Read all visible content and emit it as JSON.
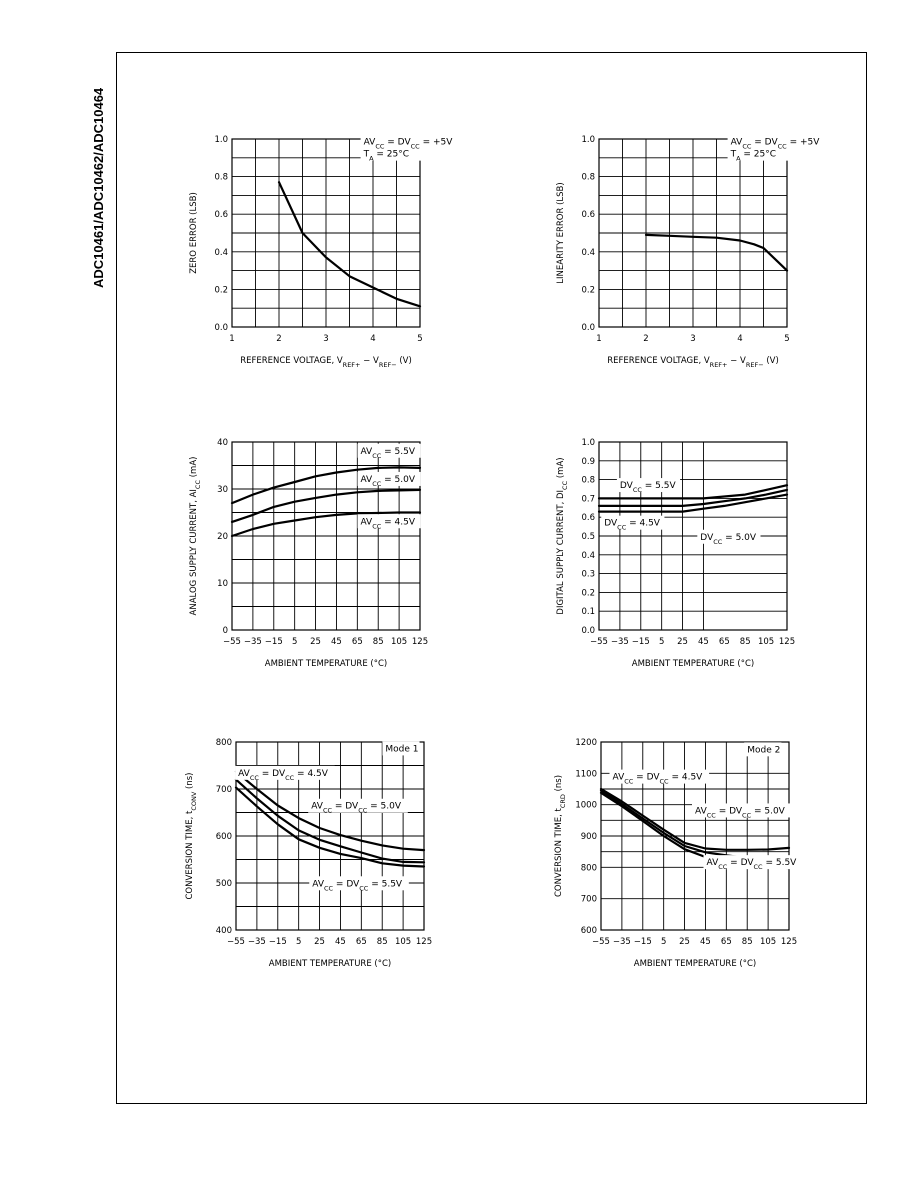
{
  "document": {
    "side_title": "ADC10461/ADC10462/ADC10464"
  },
  "chart_data": [
    {
      "type": "line",
      "ylabel": "ZERO ERROR (LSB)",
      "xlabel": "REFERENCE VOLTAGE, V_REF+ − V_REF− (V)",
      "xlim": [
        1,
        5
      ],
      "ylim": [
        0,
        1.0
      ],
      "x_ticks": [
        "1",
        "2",
        "3",
        "4",
        "5"
      ],
      "y_ticks": [
        "0.0",
        "0.2",
        "0.4",
        "0.6",
        "0.8",
        "1.0"
      ],
      "x_grid": [
        1.5,
        2,
        2.5,
        3,
        3.5,
        4,
        4.5
      ],
      "y_grid": [
        0.1,
        0.2,
        0.3,
        0.4,
        0.5,
        0.6,
        0.7,
        0.8,
        0.9
      ],
      "annotations": [
        {
          "lines": [
            "AV_CC = DV_CC = +5V",
            "T_A = 25°C"
          ],
          "x": 3.8,
          "y": 0.97
        }
      ],
      "series": [
        {
          "points": [
            [
              2,
              0.77
            ],
            [
              2.5,
              0.5
            ],
            [
              3,
              0.37
            ],
            [
              3.5,
              0.27
            ],
            [
              4,
              0.21
            ],
            [
              4.5,
              0.15
            ],
            [
              5,
              0.11
            ]
          ]
        }
      ]
    },
    {
      "type": "line",
      "ylabel": "LINEARITY ERROR (LSB)",
      "xlabel": "REFERENCE VOLTAGE, V_REF+ − V_REF− (V)",
      "xlim": [
        1,
        5
      ],
      "ylim": [
        0,
        1.0
      ],
      "x_ticks": [
        "1",
        "2",
        "3",
        "4",
        "5"
      ],
      "y_ticks": [
        "0.0",
        "0.2",
        "0.4",
        "0.6",
        "0.8",
        "1.0"
      ],
      "x_grid": [
        1.5,
        2,
        2.5,
        3,
        3.5,
        4,
        4.5
      ],
      "y_grid": [
        0.1,
        0.2,
        0.3,
        0.4,
        0.5,
        0.6,
        0.7,
        0.8,
        0.9
      ],
      "annotations": [
        {
          "lines": [
            "AV_CC = DV_CC = +5V",
            "T_A = 25°C"
          ],
          "x": 3.8,
          "y": 0.97
        }
      ],
      "series": [
        {
          "points": [
            [
              2,
              0.49
            ],
            [
              2.5,
              0.485
            ],
            [
              3,
              0.48
            ],
            [
              3.5,
              0.475
            ],
            [
              4,
              0.46
            ],
            [
              4.3,
              0.44
            ],
            [
              4.5,
              0.42
            ],
            [
              4.75,
              0.36
            ],
            [
              5,
              0.3
            ]
          ]
        }
      ]
    },
    {
      "type": "line",
      "ylabel": "ANALOG SUPPLY CURRENT, AI_CC (mA)",
      "xlabel": "AMBIENT TEMPERATURE (°C)",
      "xlim": [
        -55,
        125
      ],
      "ylim": [
        0,
        40
      ],
      "x_ticks": [
        "−55",
        "−35",
        "−15",
        "5",
        "25",
        "45",
        "65",
        "85",
        "105",
        "125"
      ],
      "y_ticks": [
        "0",
        "10",
        "20",
        "30",
        "40"
      ],
      "x_grid": [
        -35,
        -15,
        5,
        25,
        45,
        65,
        85,
        105
      ],
      "y_grid": [
        5,
        10,
        15,
        20,
        25,
        30,
        35
      ],
      "annotations": [
        {
          "lines": [
            "AV_CC = 5.5V"
          ],
          "x": 68,
          "y": 37.5
        },
        {
          "lines": [
            "AV_CC = 5.0V"
          ],
          "x": 68,
          "y": 31.5
        },
        {
          "lines": [
            "AV_CC = 4.5V"
          ],
          "x": 68,
          "y": 22.5
        }
      ],
      "series": [
        {
          "name": "AV_CC = 5.5V",
          "points": [
            [
              -55,
              27
            ],
            [
              -35,
              28.8
            ],
            [
              -15,
              30.3
            ],
            [
              5,
              31.5
            ],
            [
              25,
              32.7
            ],
            [
              45,
              33.5
            ],
            [
              65,
              34.1
            ],
            [
              85,
              34.5
            ],
            [
              105,
              34.6
            ],
            [
              125,
              34.5
            ]
          ]
        },
        {
          "name": "AV_CC = 5.0V",
          "points": [
            [
              -55,
              23
            ],
            [
              -35,
              24.5
            ],
            [
              -15,
              26.2
            ],
            [
              5,
              27.3
            ],
            [
              25,
              28.1
            ],
            [
              45,
              28.8
            ],
            [
              65,
              29.3
            ],
            [
              85,
              29.6
            ],
            [
              105,
              29.7
            ],
            [
              125,
              29.8
            ]
          ]
        },
        {
          "name": "AV_CC = 4.5V",
          "points": [
            [
              -55,
              20
            ],
            [
              -35,
              21.5
            ],
            [
              -15,
              22.6
            ],
            [
              5,
              23.3
            ],
            [
              25,
              24
            ],
            [
              45,
              24.5
            ],
            [
              65,
              24.8
            ],
            [
              85,
              24.9
            ],
            [
              105,
              25
            ],
            [
              125,
              25
            ]
          ]
        }
      ]
    },
    {
      "type": "line",
      "ylabel": "DIGITAL SUPPLY CURRENT, DI_CC (mA)",
      "xlabel": "AMBIENT TEMPERATURE (°C)",
      "xlim": [
        -55,
        125
      ],
      "ylim": [
        0,
        1.0
      ],
      "x_ticks": [
        "−55",
        "−35",
        "−15",
        "5",
        "25",
        "45",
        "65",
        "85",
        "105",
        "125"
      ],
      "y_ticks": [
        "0.0",
        "0.1",
        "0.2",
        "0.3",
        "0.4",
        "0.5",
        "0.6",
        "0.7",
        "0.8",
        "0.9",
        "1.0"
      ],
      "x_grid": [
        -35,
        -15,
        5,
        25,
        45
      ],
      "y_grid": [
        0.1,
        0.2,
        0.3,
        0.4,
        0.5,
        0.6,
        0.7,
        0.8,
        0.9
      ],
      "annotations": [
        {
          "lines": [
            "DV_CC = 5.5V"
          ],
          "x": -35,
          "y": 0.755
        },
        {
          "lines": [
            "DV_CC = 4.5V"
          ],
          "x": -50,
          "y": 0.555
        },
        {
          "lines": [
            "DV_CC = 5.0V"
          ],
          "x": 42,
          "y": 0.48
        }
      ],
      "series": [
        {
          "name": "DV_CC = 5.5V",
          "points": [
            [
              -55,
              0.7
            ],
            [
              -35,
              0.7
            ],
            [
              5,
              0.7
            ],
            [
              25,
              0.7
            ],
            [
              45,
              0.7
            ],
            [
              65,
              0.71
            ],
            [
              85,
              0.72
            ],
            [
              105,
              0.745
            ],
            [
              125,
              0.77
            ]
          ]
        },
        {
          "name": "DV_CC = 5.0V",
          "points": [
            [
              -55,
              0.66
            ],
            [
              -35,
              0.66
            ],
            [
              5,
              0.66
            ],
            [
              25,
              0.66
            ],
            [
              45,
              0.67
            ],
            [
              65,
              0.685
            ],
            [
              85,
              0.7
            ],
            [
              105,
              0.72
            ],
            [
              125,
              0.745
            ]
          ]
        },
        {
          "name": "DV_CC = 4.5V",
          "points": [
            [
              -55,
              0.63
            ],
            [
              -35,
              0.63
            ],
            [
              5,
              0.63
            ],
            [
              25,
              0.63
            ],
            [
              45,
              0.645
            ],
            [
              65,
              0.66
            ],
            [
              85,
              0.68
            ],
            [
              105,
              0.7
            ],
            [
              125,
              0.72
            ]
          ]
        }
      ]
    },
    {
      "type": "line",
      "ylabel": "CONVERSION TIME, t_CONV (ns)",
      "xlabel": "AMBIENT TEMPERATURE (°C)",
      "xlim": [
        -55,
        125
      ],
      "ylim": [
        400,
        800
      ],
      "x_ticks": [
        "−55",
        "−35",
        "−15",
        "5",
        "25",
        "45",
        "65",
        "85",
        "105",
        "125"
      ],
      "y_ticks": [
        "400",
        "500",
        "600",
        "700",
        "800"
      ],
      "x_grid": [
        -35,
        -15,
        5,
        25,
        45,
        65,
        85,
        105
      ],
      "y_grid": [
        450,
        500,
        550,
        600,
        650,
        700,
        750
      ],
      "annotations": [
        {
          "lines": [
            "Mode 1"
          ],
          "x": 88,
          "y": 780
        },
        {
          "lines": [
            "AV_CC = DV_CC = 4.5V"
          ],
          "x": -53,
          "y": 728
        },
        {
          "lines": [
            "AV_CC = DV_CC = 5.0V"
          ],
          "x": 17,
          "y": 658
        },
        {
          "lines": [
            "AV_CC = DV_CC = 5.5V"
          ],
          "x": 18,
          "y": 493
        }
      ],
      "series": [
        {
          "name": "AV_CC = DV_CC = 4.5V",
          "points": [
            [
              -55,
              737
            ],
            [
              -35,
              700
            ],
            [
              -15,
              665
            ],
            [
              5,
              638
            ],
            [
              25,
              617
            ],
            [
              45,
              602
            ],
            [
              65,
              590
            ],
            [
              85,
              580
            ],
            [
              105,
              573
            ],
            [
              125,
              570
            ]
          ]
        },
        {
          "name": "AV_CC = DV_CC = 5.0V",
          "points": [
            [
              -55,
              720
            ],
            [
              -35,
              680
            ],
            [
              -15,
              643
            ],
            [
              5,
              612
            ],
            [
              25,
              592
            ],
            [
              45,
              578
            ],
            [
              65,
              565
            ],
            [
              85,
              552
            ],
            [
              105,
              545
            ],
            [
              125,
              544
            ]
          ]
        },
        {
          "name": "AV_CC = DV_CC = 5.5V",
          "points": [
            [
              -55,
              703
            ],
            [
              -35,
              663
            ],
            [
              -15,
              625
            ],
            [
              5,
              593
            ],
            [
              25,
              575
            ],
            [
              45,
              562
            ],
            [
              65,
              553
            ],
            [
              85,
              542
            ],
            [
              105,
              537
            ],
            [
              125,
              535
            ]
          ]
        }
      ]
    },
    {
      "type": "line",
      "ylabel": "CONVERSION TIME, t_CRD (ns)",
      "xlabel": "AMBIENT TEMPERATURE (°C)",
      "xlim": [
        -55,
        125
      ],
      "ylim": [
        600,
        1200
      ],
      "x_ticks": [
        "−55",
        "−35",
        "−15",
        "5",
        "25",
        "45",
        "65",
        "85",
        "105",
        "125"
      ],
      "y_ticks": [
        "600",
        "700",
        "800",
        "900",
        "1000",
        "1100",
        "1200"
      ],
      "x_grid": [
        -35,
        -15,
        5,
        25,
        45,
        65,
        85,
        105
      ],
      "y_grid": [
        700,
        800,
        850,
        900,
        950,
        1000,
        1050,
        1100
      ],
      "annotations": [
        {
          "lines": [
            "Mode 2"
          ],
          "x": 85,
          "y": 1167
        },
        {
          "lines": [
            "AV_CC = DV_CC = 4.5V"
          ],
          "x": -44,
          "y": 1080
        },
        {
          "lines": [
            "AV_CC = DV_CC = 5.0V"
          ],
          "x": 35,
          "y": 972
        },
        {
          "lines": [
            "AV_CC = DV_CC = 5.5V"
          ],
          "x": 46,
          "y": 807
        }
      ],
      "series": [
        {
          "name": "AV_CC = DV_CC = 4.5V",
          "points": [
            [
              -55,
              1050
            ],
            [
              -35,
              1010
            ],
            [
              -15,
              965
            ],
            [
              5,
              920
            ],
            [
              25,
              878
            ],
            [
              45,
              860
            ],
            [
              65,
              856
            ],
            [
              85,
              856
            ],
            [
              105,
              857
            ],
            [
              125,
              862
            ]
          ]
        },
        {
          "name": "AV_CC = DV_CC = 5.0V",
          "points": [
            [
              -55,
              1045
            ],
            [
              -35,
              1002
            ],
            [
              -15,
              956
            ],
            [
              5,
              910
            ],
            [
              25,
              868
            ],
            [
              45,
              848
            ],
            [
              65,
              838
            ],
            [
              85,
              830
            ],
            [
              105,
              826
            ],
            [
              125,
              825
            ]
          ]
        },
        {
          "name": "AV_CC = DV_CC = 5.5V",
          "points": [
            [
              -55,
              1038
            ],
            [
              -35,
              995
            ],
            [
              -15,
              948
            ],
            [
              5,
              900
            ],
            [
              25,
              858
            ],
            [
              45,
              833
            ],
            [
              65,
              817
            ],
            [
              85,
              806
            ],
            [
              105,
              800
            ],
            [
              125,
              798
            ]
          ]
        }
      ]
    }
  ]
}
